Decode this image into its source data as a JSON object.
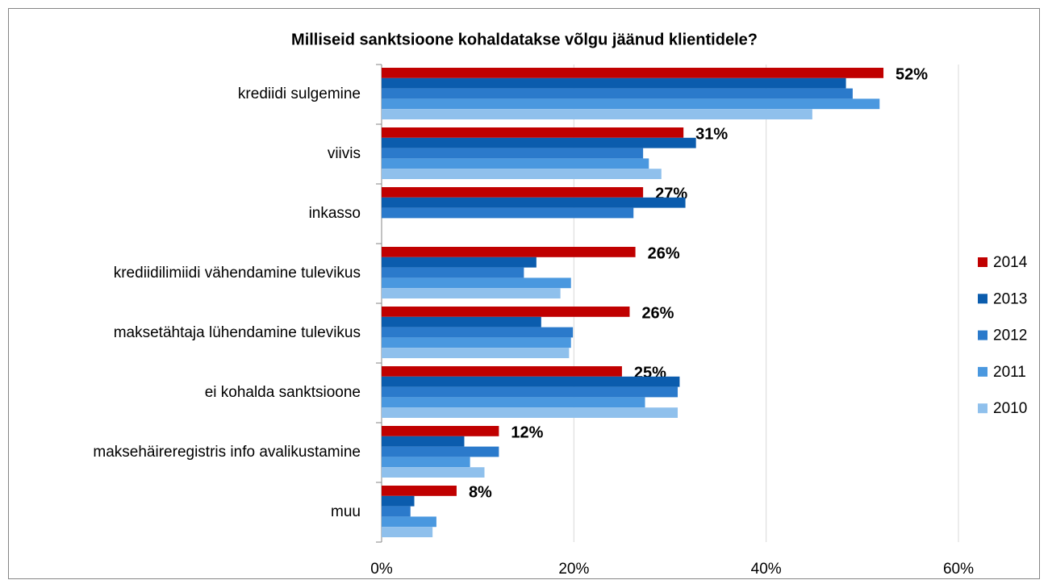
{
  "chart_data": {
    "type": "barh",
    "title": "Milliseid sanktsioone kohaldatakse võlgu jäänud klientidele?",
    "categories": [
      "krediidi sulgemine",
      "viivis",
      "inkasso",
      "krediidilimiidi vähendamine tulevikus",
      "maksetähtaja lühendamine tulevikus",
      "ei kohalda sanktsioone",
      "maksehäireregistris info avalikustamine",
      "muu"
    ],
    "series": [
      {
        "name": "2014",
        "color": "#c00000",
        "values": [
          52.2,
          31.4,
          27.2,
          26.4,
          25.8,
          25.0,
          12.2,
          7.8
        ],
        "value_labels": [
          "52%",
          "31%",
          "27%",
          "26%",
          "26%",
          "25%",
          "12%",
          "8%"
        ]
      },
      {
        "name": "2013",
        "color": "#0b5cad",
        "values": [
          48.3,
          32.7,
          31.6,
          16.1,
          16.6,
          31.0,
          8.6,
          3.4
        ]
      },
      {
        "name": "2012",
        "color": "#2b7acb",
        "values": [
          49.0,
          27.2,
          26.2,
          14.8,
          19.9,
          30.8,
          12.2,
          3.0
        ]
      },
      {
        "name": "2011",
        "color": "#4a98df",
        "values": [
          51.8,
          27.8,
          null,
          19.7,
          19.7,
          27.4,
          9.2,
          5.7
        ]
      },
      {
        "name": "2010",
        "color": "#8fc0ec",
        "values": [
          44.8,
          29.1,
          null,
          18.6,
          19.5,
          30.8,
          10.7,
          5.3
        ]
      }
    ],
    "xlim": [
      0,
      60
    ],
    "xticks": [
      {
        "value": 0,
        "label": "0%"
      },
      {
        "value": 20,
        "label": "20%"
      },
      {
        "value": 40,
        "label": "40%"
      },
      {
        "value": 60,
        "label": "60%"
      }
    ],
    "grid": true,
    "legend": "right"
  }
}
